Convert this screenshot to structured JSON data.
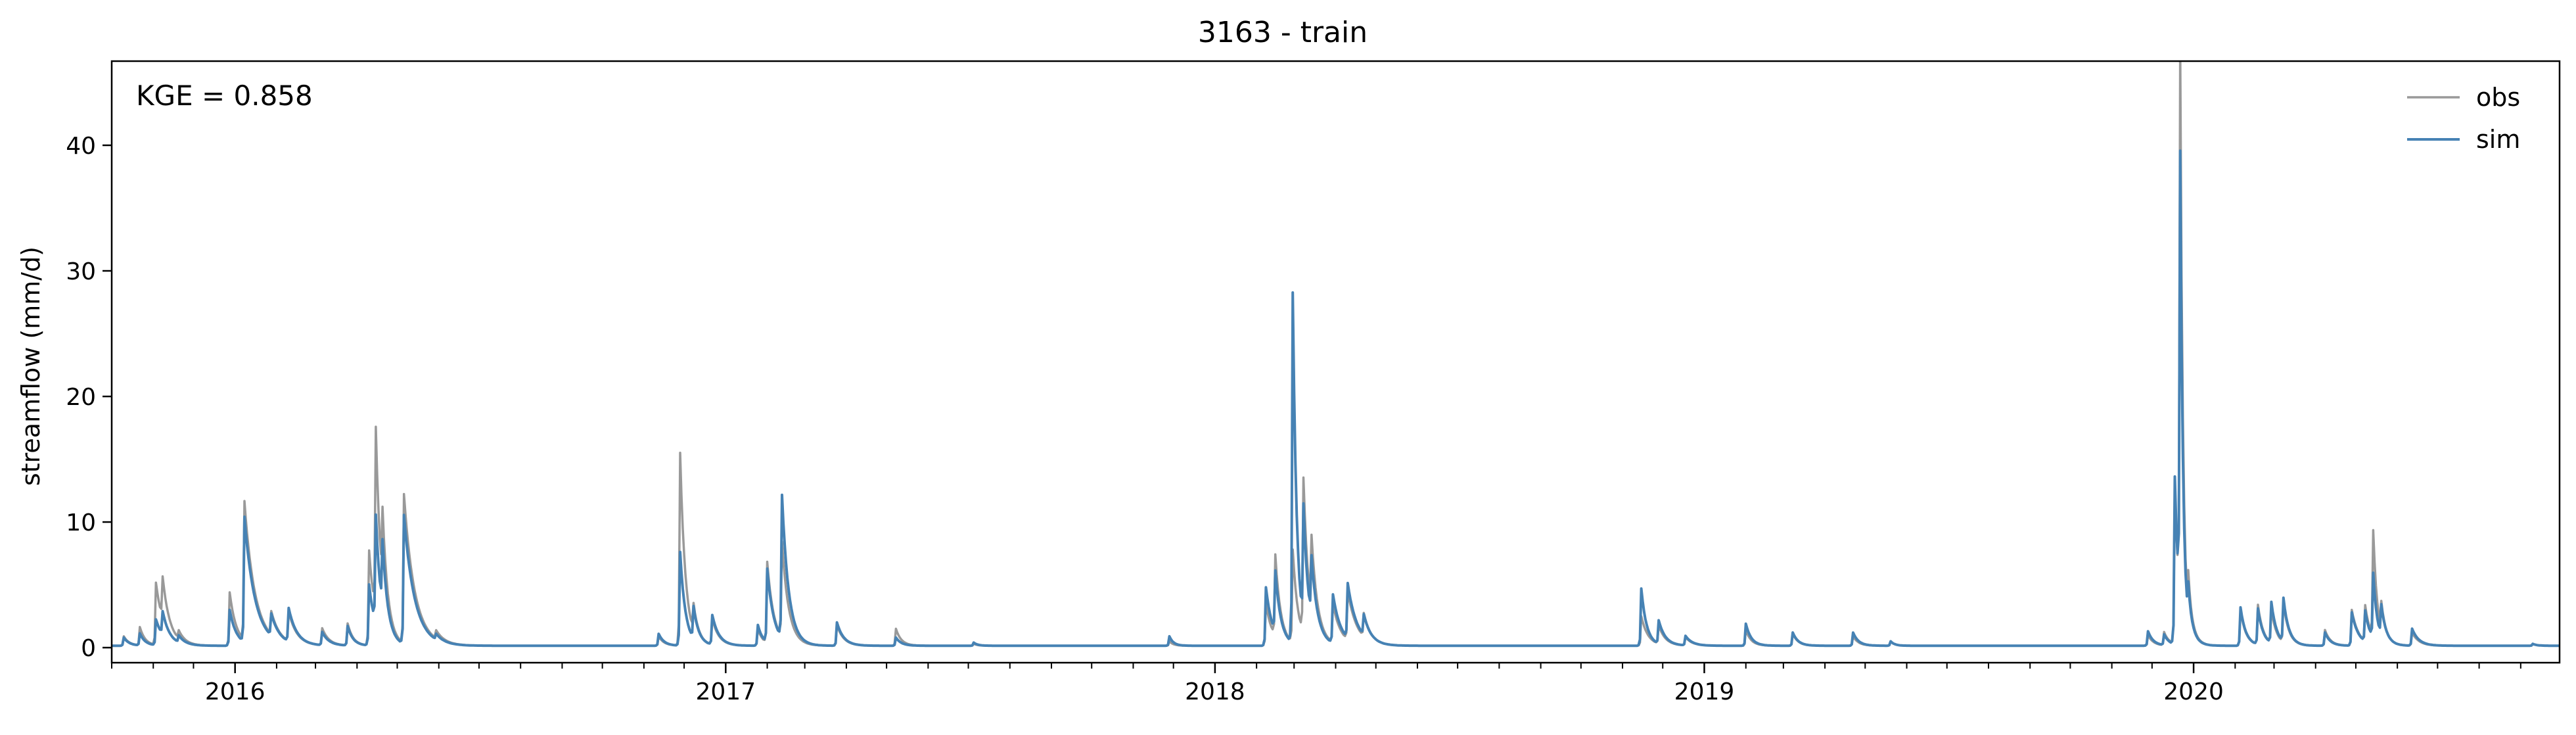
{
  "chart_data": {
    "type": "line",
    "title": "3163 - train",
    "ylabel": "streamflow (mm/d)",
    "xlabel": "",
    "annotation": "KGE = 0.858",
    "legend_position": "top-right",
    "grid": false,
    "xlim": [
      "2015-10-01",
      "2020-09-30"
    ],
    "ylim": [
      -1.2,
      46.7
    ],
    "x_ticks": [
      {
        "date": "2016-01-01",
        "label": "2016"
      },
      {
        "date": "2017-01-01",
        "label": "2017"
      },
      {
        "date": "2018-01-01",
        "label": "2018"
      },
      {
        "date": "2019-01-01",
        "label": "2019"
      },
      {
        "date": "2020-01-01",
        "label": "2020"
      }
    ],
    "y_ticks": [
      0,
      10,
      20,
      30,
      40
    ],
    "baseflow": 0.15,
    "series": [
      {
        "name": "obs",
        "color": "#999999",
        "events": [
          [
            "2015-10-10",
            0.9,
            4
          ],
          [
            "2015-10-22",
            1.6,
            4
          ],
          [
            "2015-11-03",
            5.1,
            6
          ],
          [
            "2015-11-08",
            3.5,
            5
          ],
          [
            "2015-11-20",
            0.8,
            5
          ],
          [
            "2015-12-28",
            4.4,
            5
          ],
          [
            "2016-01-08",
            11.2,
            8
          ],
          [
            "2016-01-28",
            2.0,
            6
          ],
          [
            "2016-02-10",
            2.5,
            6
          ],
          [
            "2016-03-06",
            1.5,
            5
          ],
          [
            "2016-03-25",
            1.9,
            4
          ],
          [
            "2016-04-10",
            7.7,
            5
          ],
          [
            "2016-04-15",
            14.8,
            4
          ],
          [
            "2016-04-20",
            6.0,
            4
          ],
          [
            "2016-05-06",
            12.0,
            8
          ],
          [
            "2016-05-30",
            0.8,
            6
          ],
          [
            "2016-11-12",
            0.9,
            4
          ],
          [
            "2016-11-28",
            15.5,
            4
          ],
          [
            "2016-12-08",
            2.3,
            4
          ],
          [
            "2016-12-22",
            2.2,
            5
          ],
          [
            "2017-01-25",
            1.5,
            4
          ],
          [
            "2017-02-01",
            6.6,
            5
          ],
          [
            "2017-02-12",
            7.7,
            5
          ],
          [
            "2017-03-25",
            1.8,
            5
          ],
          [
            "2017-05-08",
            1.5,
            4
          ],
          [
            "2017-07-05",
            0.3,
            3
          ],
          [
            "2017-11-28",
            0.5,
            3
          ],
          [
            "2018-02-08",
            3.5,
            5
          ],
          [
            "2018-02-15",
            6.6,
            4
          ],
          [
            "2018-02-28",
            7.5,
            4
          ],
          [
            "2018-03-08",
            12.5,
            4
          ],
          [
            "2018-03-14",
            6.0,
            5
          ],
          [
            "2018-03-30",
            3.2,
            6
          ],
          [
            "2018-04-10",
            4.0,
            7
          ],
          [
            "2018-04-22",
            2.0,
            5
          ],
          [
            "2018-11-15",
            2.5,
            5
          ],
          [
            "2018-11-28",
            1.6,
            5
          ],
          [
            "2018-12-18",
            0.8,
            5
          ],
          [
            "2019-02-01",
            1.4,
            4
          ],
          [
            "2019-03-08",
            1.1,
            4
          ],
          [
            "2019-04-22",
            0.9,
            4
          ],
          [
            "2019-05-20",
            0.5,
            3
          ],
          [
            "2019-11-28",
            1.0,
            4
          ],
          [
            "2019-12-10",
            1.2,
            4
          ],
          [
            "2019-12-18",
            13.0,
            3
          ],
          [
            "2019-12-22",
            44.5,
            2
          ],
          [
            "2019-12-28",
            3.5,
            4
          ],
          [
            "2020-02-05",
            3.0,
            4
          ],
          [
            "2020-02-18",
            3.3,
            4
          ],
          [
            "2020-02-28",
            2.8,
            4
          ],
          [
            "2020-03-08",
            3.3,
            4
          ],
          [
            "2020-04-08",
            1.4,
            4
          ],
          [
            "2020-04-28",
            3.0,
            5
          ],
          [
            "2020-05-08",
            3.0,
            4
          ],
          [
            "2020-05-14",
            8.6,
            3
          ],
          [
            "2020-05-20",
            2.4,
            4
          ],
          [
            "2020-06-12",
            1.2,
            5
          ],
          [
            "2020-09-10",
            0.3,
            3
          ]
        ]
      },
      {
        "name": "sim",
        "color": "#4682b4",
        "events": [
          [
            "2015-10-10",
            0.8,
            4
          ],
          [
            "2015-10-22",
            1.1,
            4
          ],
          [
            "2015-11-03",
            2.2,
            6
          ],
          [
            "2015-11-08",
            2.0,
            5
          ],
          [
            "2015-11-20",
            0.7,
            5
          ],
          [
            "2015-12-28",
            3.0,
            5
          ],
          [
            "2016-01-08",
            10.1,
            8
          ],
          [
            "2016-01-28",
            1.9,
            6
          ],
          [
            "2016-02-10",
            2.8,
            6
          ],
          [
            "2016-03-06",
            1.2,
            5
          ],
          [
            "2016-03-25",
            1.7,
            4
          ],
          [
            "2016-04-10",
            5.0,
            5
          ],
          [
            "2016-04-15",
            8.8,
            4
          ],
          [
            "2016-04-20",
            5.5,
            4
          ],
          [
            "2016-05-06",
            10.4,
            8
          ],
          [
            "2016-05-30",
            0.6,
            6
          ],
          [
            "2016-11-12",
            1.1,
            4
          ],
          [
            "2016-11-28",
            7.6,
            4
          ],
          [
            "2016-12-08",
            2.7,
            4
          ],
          [
            "2016-12-22",
            2.5,
            5
          ],
          [
            "2017-01-25",
            1.8,
            4
          ],
          [
            "2017-02-01",
            6.0,
            5
          ],
          [
            "2017-02-12",
            11.5,
            5
          ],
          [
            "2017-03-25",
            2.0,
            5
          ],
          [
            "2017-05-08",
            0.8,
            4
          ],
          [
            "2017-07-05",
            0.4,
            3
          ],
          [
            "2017-11-28",
            0.9,
            3
          ],
          [
            "2018-02-08",
            4.8,
            5
          ],
          [
            "2018-02-15",
            5.0,
            4
          ],
          [
            "2018-02-28",
            28.0,
            3
          ],
          [
            "2018-03-08",
            9.5,
            4
          ],
          [
            "2018-03-14",
            5.0,
            5
          ],
          [
            "2018-03-30",
            4.0,
            6
          ],
          [
            "2018-04-10",
            4.5,
            7
          ],
          [
            "2018-04-22",
            1.8,
            5
          ],
          [
            "2018-11-15",
            4.7,
            4
          ],
          [
            "2018-11-28",
            2.0,
            5
          ],
          [
            "2018-12-18",
            0.9,
            5
          ],
          [
            "2019-02-01",
            1.9,
            4
          ],
          [
            "2019-03-08",
            1.2,
            4
          ],
          [
            "2019-04-22",
            1.2,
            4
          ],
          [
            "2019-05-20",
            0.5,
            3
          ],
          [
            "2019-11-28",
            1.3,
            4
          ],
          [
            "2019-12-10",
            1.0,
            4
          ],
          [
            "2019-12-18",
            13.5,
            3
          ],
          [
            "2019-12-22",
            36.0,
            2
          ],
          [
            "2019-12-28",
            3.0,
            4
          ],
          [
            "2020-02-05",
            3.2,
            4
          ],
          [
            "2020-02-18",
            3.0,
            4
          ],
          [
            "2020-02-28",
            3.4,
            4
          ],
          [
            "2020-03-08",
            3.6,
            4
          ],
          [
            "2020-04-08",
            1.2,
            4
          ],
          [
            "2020-04-28",
            2.8,
            5
          ],
          [
            "2020-05-08",
            2.6,
            4
          ],
          [
            "2020-05-14",
            5.3,
            3
          ],
          [
            "2020-05-20",
            2.6,
            4
          ],
          [
            "2020-06-12",
            1.5,
            5
          ],
          [
            "2020-09-10",
            0.3,
            3
          ]
        ]
      }
    ]
  }
}
